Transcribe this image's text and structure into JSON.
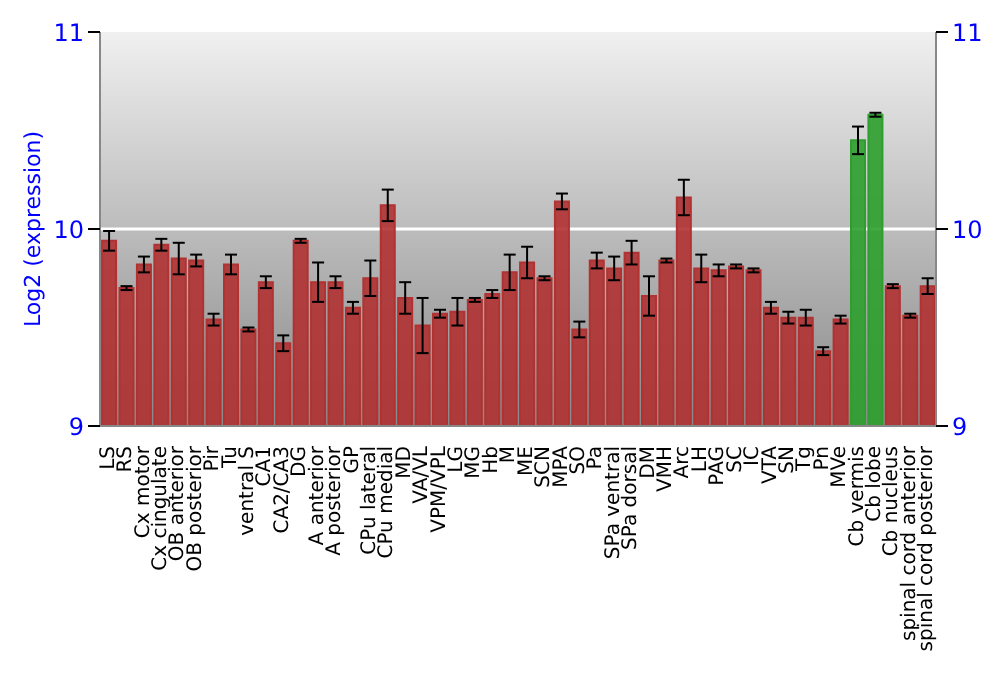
{
  "chart_data": {
    "type": "bar",
    "ylabel": "Log2 (expression)",
    "categories": [
      "LS",
      "RS",
      "Cx motor",
      "Cx cingulate",
      "OB anterior",
      "OB posterior",
      "Pir",
      "Tu",
      "ventral S",
      "CA1",
      "CA2/CA3",
      "DG",
      "A anterior",
      "A posterior",
      "GP",
      "CPu lateral",
      "CPu medial",
      "MD",
      "VA/VL",
      "VPM/VPL",
      "LG",
      "MG",
      "Hb",
      "M",
      "ME",
      "SCN",
      "MPA",
      "SO",
      "Pa",
      "SPa ventral",
      "SPa dorsal",
      "DM",
      "VMH",
      "Arc",
      "LH",
      "PAG",
      "SC",
      "IC",
      "VTA",
      "SN",
      "Tg",
      "Pn",
      "MVe",
      "Cb vermis",
      "Cb lobe",
      "Cb nucleus",
      "spinal cord anterior",
      "spinal cord posterior"
    ],
    "values": [
      9.94,
      9.7,
      9.82,
      9.92,
      9.85,
      9.84,
      9.54,
      9.82,
      9.49,
      9.73,
      9.42,
      9.94,
      9.73,
      9.73,
      9.6,
      9.75,
      10.12,
      9.65,
      9.51,
      9.57,
      9.58,
      9.64,
      9.67,
      9.78,
      9.83,
      9.75,
      10.14,
      9.49,
      9.84,
      9.8,
      9.88,
      9.66,
      9.84,
      10.16,
      9.8,
      9.79,
      9.81,
      9.79,
      9.6,
      9.55,
      9.55,
      9.38,
      9.54,
      10.45,
      10.58,
      9.71,
      9.56,
      9.71
    ],
    "errors": [
      0.05,
      0.01,
      0.04,
      0.03,
      0.08,
      0.03,
      0.03,
      0.05,
      0.01,
      0.03,
      0.04,
      0.01,
      0.1,
      0.03,
      0.03,
      0.09,
      0.08,
      0.08,
      0.14,
      0.02,
      0.07,
      0.01,
      0.02,
      0.09,
      0.08,
      0.01,
      0.04,
      0.04,
      0.04,
      0.06,
      0.06,
      0.1,
      0.01,
      0.09,
      0.07,
      0.03,
      0.01,
      0.01,
      0.03,
      0.03,
      0.04,
      0.02,
      0.02,
      0.07,
      0.01,
      0.01,
      0.01,
      0.04
    ],
    "colors": [
      "#b03232",
      "#b03232",
      "#b03232",
      "#b03232",
      "#b03232",
      "#b03232",
      "#b03232",
      "#b03232",
      "#b03232",
      "#b03232",
      "#b03232",
      "#b03232",
      "#b03232",
      "#b03232",
      "#b03232",
      "#b03232",
      "#b03232",
      "#b03232",
      "#b03232",
      "#b03232",
      "#b03232",
      "#b03232",
      "#b03232",
      "#b03232",
      "#b03232",
      "#b03232",
      "#b03232",
      "#b03232",
      "#b03232",
      "#b03232",
      "#b03232",
      "#b03232",
      "#b03232",
      "#b03232",
      "#b03232",
      "#b03232",
      "#b03232",
      "#b03232",
      "#b03232",
      "#b03232",
      "#b03232",
      "#b03232",
      "#b03232",
      "#2e9e2e",
      "#2e9e2e",
      "#b03232",
      "#b03232",
      "#b03232"
    ],
    "ylim": [
      9,
      11
    ],
    "yticks": [
      9,
      10,
      11
    ],
    "y2lim": [
      9,
      11
    ],
    "y2ticks": [
      9,
      10,
      11
    ],
    "grid": "y"
  }
}
